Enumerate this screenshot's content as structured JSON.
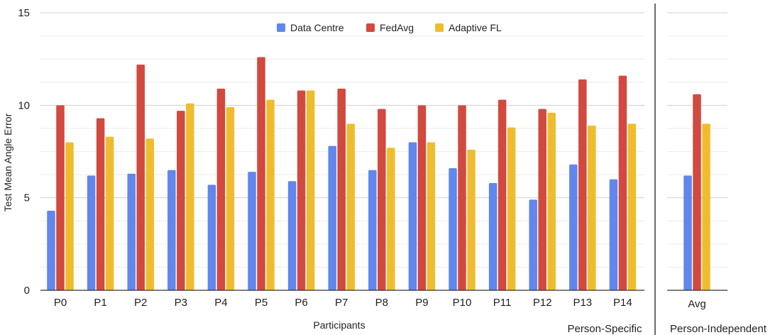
{
  "chart_data": {
    "type": "bar",
    "title": "",
    "xlabel": "Participants",
    "ylabel": "Test Mean Angle Error",
    "ylim": [
      0,
      15
    ],
    "yticks": [
      0,
      5,
      10,
      15
    ],
    "minor_grid_step": 1.25,
    "grid": true,
    "legend_position": "top-center",
    "categories": [
      "P0",
      "P1",
      "P2",
      "P3",
      "P4",
      "P5",
      "P6",
      "P7",
      "P8",
      "P9",
      "P10",
      "P11",
      "P12",
      "P13",
      "P14"
    ],
    "series": [
      {
        "name": "Data Centre",
        "color": "#6186ec",
        "values": [
          4.3,
          6.2,
          6.3,
          6.5,
          5.7,
          6.4,
          5.9,
          7.8,
          6.5,
          8.0,
          6.6,
          5.8,
          4.9,
          6.8,
          6.0
        ]
      },
      {
        "name": "FedAvg",
        "color": "#d1493f",
        "values": [
          10.0,
          9.3,
          12.2,
          9.7,
          10.9,
          12.6,
          10.8,
          10.9,
          9.8,
          10.0,
          10.0,
          10.3,
          9.8,
          11.4,
          11.6
        ]
      },
      {
        "name": "Adaptive FL",
        "color": "#eebd2f",
        "values": [
          8.0,
          8.3,
          8.2,
          10.1,
          9.9,
          10.3,
          10.8,
          9.0,
          7.7,
          8.0,
          7.6,
          8.8,
          9.6,
          8.9,
          9.0
        ]
      }
    ],
    "section_label": "Person-Specific",
    "secondary": {
      "categories": [
        "Avg"
      ],
      "series": [
        {
          "name": "Data Centre",
          "values": [
            6.2
          ]
        },
        {
          "name": "FedAvg",
          "values": [
            10.6
          ]
        },
        {
          "name": "Adaptive FL",
          "values": [
            9.0
          ]
        }
      ],
      "section_label": "Person-Independent"
    }
  }
}
